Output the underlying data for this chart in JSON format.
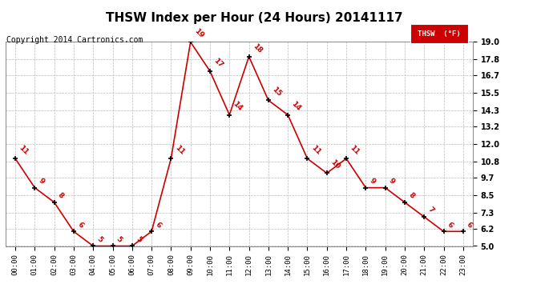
{
  "title": "THSW Index per Hour (24 Hours) 20141117",
  "copyright": "Copyright 2014 Cartronics.com",
  "legend_label": "THSW  (°F)",
  "hours": [
    0,
    1,
    2,
    3,
    4,
    5,
    6,
    7,
    8,
    9,
    10,
    11,
    12,
    13,
    14,
    15,
    16,
    17,
    18,
    19,
    20,
    21,
    22,
    23
  ],
  "values": [
    11,
    9,
    8,
    6,
    5,
    5,
    5,
    6,
    11,
    19,
    17,
    14,
    18,
    15,
    14,
    11,
    10,
    11,
    9,
    9,
    8,
    7,
    6,
    6
  ],
  "ylim": [
    5.0,
    19.0
  ],
  "yticks": [
    5.0,
    6.2,
    7.3,
    8.5,
    9.7,
    10.8,
    12.0,
    13.2,
    14.3,
    15.5,
    16.7,
    17.8,
    19.0
  ],
  "line_color": "#cc0000",
  "marker_color": "#000000",
  "label_color": "#cc0000",
  "bg_color": "#ffffff",
  "grid_color": "#bbbbbb",
  "title_fontsize": 11,
  "copyright_fontsize": 7,
  "label_fontsize": 6.5
}
